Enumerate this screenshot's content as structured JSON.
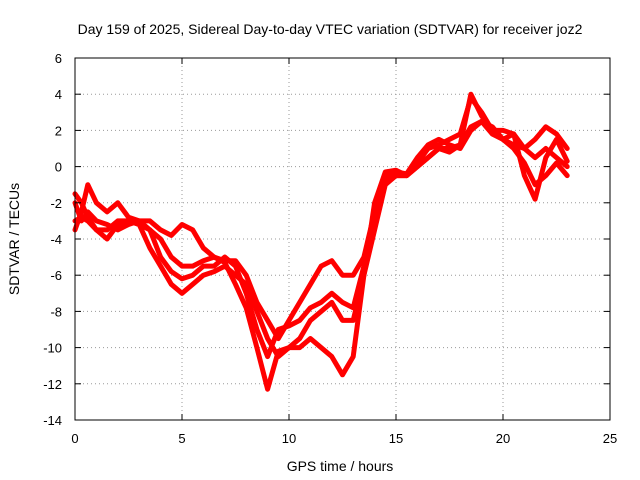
{
  "chart_data": {
    "type": "scatter",
    "title": "Day 159 of 2025, Sidereal Day-to-day VTEC variation (SDTVAR) for receiver joz2",
    "xlabel": "GPS time / hours",
    "ylabel": "SDTVAR / TECUs",
    "xlim": [
      0,
      25
    ],
    "ylim": [
      -14,
      6
    ],
    "xticks": [
      "0",
      "5",
      "10",
      "15",
      "20",
      "25"
    ],
    "yticks": [
      "-14",
      "-12",
      "-10",
      "-8",
      "-6",
      "-4",
      "-2",
      "0",
      "2",
      "4",
      "6"
    ],
    "grid": true,
    "marker": "+",
    "color": "#ff0000",
    "series": [
      {
        "x": [
          0,
          0.3,
          0.6,
          1,
          1.5,
          2,
          2.5,
          3,
          3.5,
          4,
          4.5,
          5,
          5.5,
          6,
          6.5,
          7,
          7.5,
          8,
          8.5,
          9,
          9.5,
          10,
          10.5,
          11,
          11.5,
          12,
          12.5,
          13,
          13.5,
          14,
          14.5,
          15,
          15.5,
          16,
          16.5,
          17,
          17.5,
          18,
          18.5,
          19,
          19.5,
          20,
          20.5,
          21,
          21.5,
          22,
          22.5,
          23
        ],
        "y": [
          -1.5,
          -2,
          -2.8,
          -3.5,
          -4,
          -3.2,
          -3,
          -3.2,
          -4.5,
          -5.5,
          -6.5,
          -7,
          -6.5,
          -6,
          -5.8,
          -5.5,
          -6,
          -6.5,
          -8,
          -9.5,
          -10.5,
          -10,
          -9.5,
          -8.5,
          -8,
          -7.5,
          -8.5,
          -8.5,
          -6,
          -3.5,
          -1,
          -0.5,
          -0.5,
          0,
          0.5,
          1,
          1,
          1.2,
          2.2,
          2.5,
          1.8,
          1.5,
          1.2,
          1,
          0.5,
          1,
          0.5,
          0
        ]
      },
      {
        "x": [
          0,
          0.3,
          0.6,
          1,
          1.5,
          2,
          2.5,
          3,
          3.5,
          4,
          4.5,
          5,
          5.5,
          6,
          6.5,
          7,
          7.5,
          8,
          8.5,
          9,
          9.5,
          10,
          10.5,
          11,
          11.5,
          12,
          12.5,
          13,
          13.5,
          14,
          14.5,
          15,
          15.5,
          16,
          16.5,
          17,
          17.5,
          18,
          18.5,
          19,
          19.5,
          20,
          20.5,
          21,
          21.5,
          22,
          22.5,
          23
        ],
        "y": [
          -3.5,
          -2.5,
          -1,
          -2,
          -2.5,
          -2,
          -2.8,
          -3,
          -3,
          -3.5,
          -3.8,
          -3.2,
          -3.5,
          -4.5,
          -5,
          -5.2,
          -5.2,
          -6,
          -7.5,
          -8.5,
          -9.5,
          -8.5,
          -7.5,
          -6.5,
          -5.5,
          -5.2,
          -6,
          -6,
          -5,
          -2.5,
          -0.5,
          -0.3,
          -0.4,
          0.5,
          1.2,
          1.5,
          1.2,
          1,
          2,
          2.5,
          2.2,
          1.5,
          1.8,
          1,
          1.5,
          2.2,
          1.8,
          1
        ]
      },
      {
        "x": [
          0,
          0.3,
          0.6,
          1,
          1.5,
          2,
          2.5,
          3,
          3.5,
          4,
          4.5,
          5,
          5.5,
          6,
          6.5,
          7,
          7.5,
          8,
          8.5,
          9,
          9.5,
          10,
          10.5,
          11,
          11.5,
          12,
          12.5,
          13,
          13.5,
          14,
          14.5,
          15,
          15.5,
          16,
          16.5,
          17,
          17.5,
          18,
          18.5,
          19,
          19.5,
          20,
          20.5,
          21,
          21.5,
          22,
          22.5,
          23
        ],
        "y": [
          -3,
          -2.8,
          -3,
          -3.5,
          -3.5,
          -3,
          -3,
          -3.2,
          -3.5,
          -5,
          -5.8,
          -6.2,
          -6,
          -5.5,
          -5.5,
          -5,
          -5.5,
          -7,
          -9,
          -10.5,
          -9,
          -8.8,
          -8.5,
          -7.8,
          -7.5,
          -7,
          -7.5,
          -7.8,
          -5.5,
          -3,
          -0.8,
          -0.5,
          -0.5,
          0.2,
          1,
          1.2,
          1.5,
          1.8,
          3.8,
          3,
          2,
          1.5,
          1,
          0.2,
          -1,
          -0.5,
          0.2,
          -0.5
        ]
      },
      {
        "x": [
          0,
          0.3,
          0.6,
          1,
          1.5,
          2,
          2.5,
          3,
          3.5,
          4,
          4.5,
          5,
          5.5,
          6,
          6.5,
          7,
          7.5,
          8,
          8.5,
          9,
          9.5,
          10,
          10.5,
          11,
          11.5,
          12,
          12.5,
          13,
          13.5,
          14,
          14.5,
          15,
          15.5,
          16,
          16.5,
          17,
          17.5,
          18,
          18.5,
          19,
          19.5,
          20,
          20.5,
          21,
          21.5,
          22,
          22.5,
          23
        ],
        "y": [
          -2,
          -3,
          -2.5,
          -3,
          -3.2,
          -3.5,
          -3.2,
          -3,
          -3.5,
          -4,
          -5,
          -5.5,
          -5.5,
          -5.2,
          -5,
          -5.3,
          -6.5,
          -7.8,
          -10,
          -12.3,
          -10.2,
          -10,
          -10,
          -9.5,
          -10,
          -10.5,
          -11.5,
          -10.5,
          -6,
          -2,
          -0.3,
          -0.2,
          -0.5,
          0,
          0.5,
          1,
          0.8,
          1.2,
          4,
          2.8,
          2,
          2,
          1.8,
          -0.5,
          -1.8,
          0.5,
          1.5,
          0.3
        ]
      }
    ]
  }
}
